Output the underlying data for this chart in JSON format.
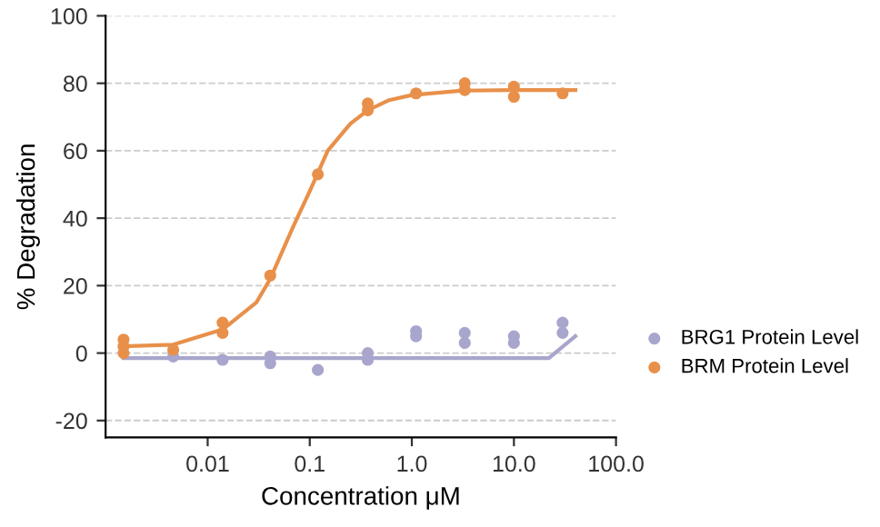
{
  "chart_data": {
    "type": "scatter",
    "xlabel": "Concentration μM",
    "ylabel": "% Degradation",
    "log": "x",
    "xlim": [
      0.001,
      100
    ],
    "xticks": [
      {
        "value": 0.01,
        "label": "0.01"
      },
      {
        "value": 0.1,
        "label": "0.1"
      },
      {
        "value": 1,
        "label": "1.0"
      },
      {
        "value": 10,
        "label": "10.0"
      },
      {
        "value": 100,
        "label": "100.0"
      }
    ],
    "ylim": [
      -25,
      100
    ],
    "yticks": [
      -20,
      0,
      20,
      40,
      60,
      80,
      100
    ],
    "grid": "y",
    "legend": "right",
    "marker": "circle",
    "series": [
      {
        "name": "BRG1 Protein Level",
        "color": "#a8a6cc",
        "x": [
          0.0046,
          0.014,
          0.041,
          0.041,
          0.12,
          0.37,
          0.37,
          1.1,
          1.1,
          3.3,
          3.3,
          10,
          10,
          30,
          30
        ],
        "values": [
          -1,
          -2,
          -1,
          -3,
          -5,
          0,
          -2,
          6.5,
          5,
          6,
          3,
          5,
          3,
          9,
          6
        ]
      },
      {
        "name": "BRM Protein Level",
        "color": "#e8904a",
        "x": [
          0.0015,
          0.0015,
          0.0015,
          0.0046,
          0.014,
          0.014,
          0.041,
          0.12,
          0.37,
          0.37,
          1.1,
          3.3,
          3.3,
          10,
          10,
          30
        ],
        "values": [
          4,
          2,
          0,
          1,
          9,
          6,
          23,
          53,
          74,
          72,
          77,
          80,
          78,
          79,
          76,
          77
        ]
      },
      {
        "type": "line",
        "color": "#a8a6cc",
        "line_style": "solid",
        "marker": "none",
        "x": [
          0.0015,
          22,
          40
        ],
        "values": [
          -1.5,
          -1.5,
          5
        ]
      },
      {
        "type": "line",
        "color": "#e8904a",
        "line_style": "solid",
        "marker": "none",
        "x": [
          0.0015,
          0.0046,
          0.014,
          0.03,
          0.041,
          0.07,
          0.1,
          0.15,
          0.25,
          0.37,
          0.6,
          1,
          3,
          10,
          40
        ],
        "values": [
          2,
          2.5,
          7,
          15,
          22,
          38,
          48,
          60,
          68,
          72,
          75,
          76.5,
          77.8,
          78,
          78
        ]
      }
    ]
  }
}
